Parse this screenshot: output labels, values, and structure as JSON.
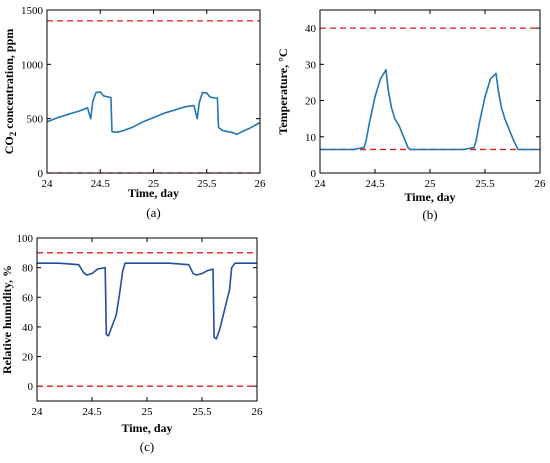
{
  "chart_data": [
    {
      "type": "line",
      "panel_label": "(a)",
      "xlabel": "Time, day",
      "ylabel_main": "CO",
      "ylabel_sub": "2",
      "ylabel_rest": " concentration, ppm",
      "xlim": [
        24,
        26
      ],
      "ylim": [
        0,
        1500
      ],
      "xticks": [
        24,
        24.5,
        25,
        25.5,
        26
      ],
      "yticks": [
        0,
        500,
        1000,
        1500
      ],
      "line_color": "#1f77b4",
      "limit_color": "#e31a1c",
      "limits": [
        1400,
        0
      ],
      "series": [
        {
          "x": [
            24,
            24.1,
            24.2,
            24.3,
            24.38,
            24.41,
            24.43,
            24.46,
            24.5,
            24.53,
            24.57,
            24.6,
            24.61,
            24.65,
            24.7,
            24.8,
            24.9,
            25.0,
            25.1,
            25.2,
            25.3,
            25.38,
            25.41,
            25.43,
            25.46,
            25.5,
            25.53,
            25.57,
            25.6,
            25.61,
            25.65,
            25.7,
            25.75,
            25.78,
            25.82,
            25.9,
            26.0
          ],
          "y": [
            470,
            510,
            540,
            570,
            600,
            500,
            660,
            740,
            745,
            710,
            700,
            695,
            380,
            375,
            385,
            420,
            470,
            510,
            550,
            580,
            610,
            620,
            500,
            650,
            740,
            735,
            700,
            690,
            690,
            420,
            390,
            380,
            370,
            355,
            375,
            410,
            465
          ]
        }
      ]
    },
    {
      "type": "line",
      "panel_label": "(b)",
      "xlabel": "Time, day",
      "ylabel": "Temperature, °C",
      "xlim": [
        24,
        26
      ],
      "ylim": [
        0,
        45
      ],
      "xticks": [
        24,
        24.5,
        25,
        25.5,
        26
      ],
      "yticks": [
        0,
        10,
        20,
        30,
        40
      ],
      "line_color": "#1f77b4",
      "limit_color": "#e31a1c",
      "limits": [
        40,
        6.5
      ],
      "series": [
        {
          "x": [
            24,
            24.1,
            24.2,
            24.3,
            24.4,
            24.42,
            24.45,
            24.5,
            24.55,
            24.6,
            24.62,
            24.65,
            24.68,
            24.72,
            24.76,
            24.8,
            24.82,
            24.9,
            25.0,
            25.1,
            25.2,
            25.3,
            25.4,
            25.42,
            25.45,
            25.5,
            25.55,
            25.6,
            25.62,
            25.65,
            25.68,
            25.72,
            25.76,
            25.8,
            25.82,
            25.9,
            26.0
          ],
          "y": [
            6.5,
            6.5,
            6.5,
            6.5,
            7,
            9,
            14,
            21,
            26,
            28.5,
            23,
            18,
            15,
            13,
            10,
            7,
            6.5,
            6.5,
            6.5,
            6.5,
            6.5,
            6.5,
            7,
            9,
            14,
            21,
            26,
            27.5,
            23,
            18,
            15,
            12,
            9,
            6.5,
            6.5,
            6.5,
            6.5
          ]
        }
      ]
    },
    {
      "type": "line",
      "panel_label": "(c)",
      "xlabel": "Time, day",
      "ylabel": "Relative humidity, %",
      "xlim": [
        24,
        26
      ],
      "ylim": [
        -10,
        100
      ],
      "xticks": [
        24,
        24.5,
        25,
        25.5,
        26
      ],
      "yticks": [
        0,
        20,
        40,
        60,
        80,
        100
      ],
      "line_color": "#1f4e9c",
      "limit_color": "#e31a1c",
      "limits": [
        90,
        0
      ],
      "series": [
        {
          "x": [
            24,
            24.1,
            24.2,
            24.38,
            24.42,
            24.45,
            24.5,
            24.55,
            24.62,
            24.63,
            24.65,
            24.68,
            24.72,
            24.75,
            24.78,
            24.8,
            24.9,
            25.0,
            25.1,
            25.2,
            25.38,
            25.42,
            25.45,
            25.5,
            25.55,
            25.6,
            25.61,
            25.63,
            25.66,
            25.7,
            25.72,
            25.75,
            25.77,
            25.8,
            25.9,
            26.0
          ],
          "y": [
            83,
            83,
            83,
            82,
            77,
            75,
            76,
            79,
            80,
            35,
            34,
            40,
            48,
            62,
            78,
            83,
            83,
            83,
            83,
            83,
            82,
            76,
            75,
            76,
            78,
            79,
            33,
            32,
            38,
            50,
            56,
            65,
            80,
            83,
            83,
            83
          ]
        }
      ]
    }
  ]
}
